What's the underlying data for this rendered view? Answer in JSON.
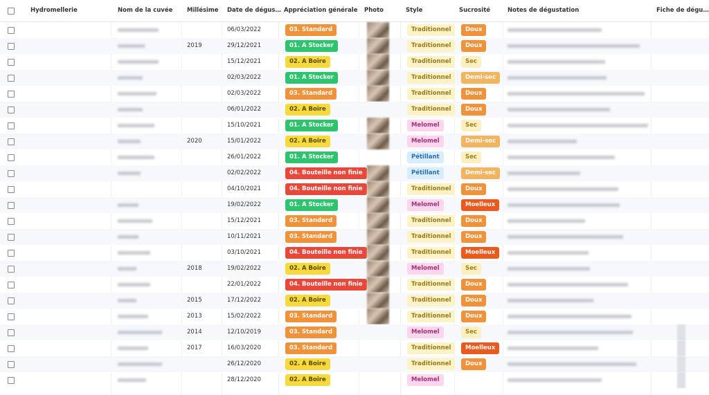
{
  "table": {
    "headers": [
      "Hydromellerie",
      "Nom de la cuvée",
      "Millésime",
      "Date de dégus…",
      "Appréciation générale",
      "Photo",
      "Style",
      "Sucrosité",
      "Notes de dégustation",
      "Fiche de dégu…"
    ],
    "tag_colors": {
      "appreciation": {
        "03. Standard": [
          "#f0923a",
          "#ffffff"
        ],
        "01. A Stocker": [
          "#2ec36d",
          "#ffffff"
        ],
        "02. A Boire": [
          "#f6d93c",
          "#5a4a00"
        ],
        "04. Bouteille non finie": [
          "#e8473a",
          "#ffffff"
        ]
      },
      "style": {
        "Traditionnel": [
          "#fdf3c6",
          "#9a7a1e"
        ],
        "Melomel": [
          "#fbd6ec",
          "#a2317b"
        ],
        "Pétillant": [
          "#d8edfd",
          "#2b6fb0"
        ]
      },
      "sucrosite": {
        "Doux": [
          "#f0923a",
          "#ffffff"
        ],
        "Sec": [
          "#fdf0c0",
          "#a0801f"
        ],
        "Demi-sec": [
          "#f2b45e",
          "#ffffff"
        ],
        "Moelleux": [
          "#eb5a1c",
          "#ffffff"
        ]
      }
    },
    "rows": [
      {
        "millesime": null,
        "date": "06/03/2022",
        "appreciation": "03. Standard",
        "style": "Traditionnel",
        "sucrosite": "Doux",
        "photo": true
      },
      {
        "millesime": "2019",
        "date": "29/12/2021",
        "appreciation": "01. A Stocker",
        "style": "Traditionnel",
        "sucrosite": "Doux",
        "photo": true
      },
      {
        "millesime": null,
        "date": "15/12/2021",
        "appreciation": "02. A Boire",
        "style": "Traditionnel",
        "sucrosite": "Sec",
        "photo": true
      },
      {
        "millesime": null,
        "date": "02/03/2022",
        "appreciation": "01. A Stocker",
        "style": "Traditionnel",
        "sucrosite": "Demi-sec",
        "photo": true
      },
      {
        "millesime": null,
        "date": "02/03/2022",
        "appreciation": "03. Standard",
        "style": "Traditionnel",
        "sucrosite": "Doux",
        "photo": true
      },
      {
        "millesime": null,
        "date": "06/01/2022",
        "appreciation": "02. A Boire",
        "style": "Traditionnel",
        "sucrosite": "Doux",
        "photo": false
      },
      {
        "millesime": null,
        "date": "15/10/2021",
        "appreciation": "01. A Stocker",
        "style": "Melomel",
        "sucrosite": "Sec",
        "photo": true
      },
      {
        "millesime": "2020",
        "date": "15/01/2022",
        "appreciation": "02. A Boire",
        "style": "Melomel",
        "sucrosite": "Demi-sec",
        "photo": true
      },
      {
        "millesime": null,
        "date": "26/01/2022",
        "appreciation": "01. A Stocker",
        "style": "Pétillant",
        "sucrosite": "Sec",
        "photo": false
      },
      {
        "millesime": null,
        "date": "02/02/2022",
        "appreciation": "04. Bouteille non finie",
        "style": "Pétillant",
        "sucrosite": "Demi-sec",
        "photo": true
      },
      {
        "millesime": null,
        "date": "04/10/2021",
        "appreciation": "04. Bouteille non finie",
        "style": "Traditionnel",
        "sucrosite": "Doux",
        "photo": true
      },
      {
        "millesime": null,
        "date": "19/02/2022",
        "appreciation": "01. A Stocker",
        "style": "Melomel",
        "sucrosite": "Moelleux",
        "photo": true
      },
      {
        "millesime": null,
        "date": "15/12/2021",
        "appreciation": "03. Standard",
        "style": "Traditionnel",
        "sucrosite": "Doux",
        "photo": true
      },
      {
        "millesime": null,
        "date": "10/11/2021",
        "appreciation": "03. Standard",
        "style": "Traditionnel",
        "sucrosite": "Doux",
        "photo": true
      },
      {
        "millesime": null,
        "date": "03/10/2021",
        "appreciation": "04. Bouteille non finie",
        "style": "Traditionnel",
        "sucrosite": "Moelleux",
        "photo": true
      },
      {
        "millesime": "2018",
        "date": "19/02/2022",
        "appreciation": "02. A Boire",
        "style": "Melomel",
        "sucrosite": "Sec",
        "photo": true
      },
      {
        "millesime": null,
        "date": "22/01/2022",
        "appreciation": "04. Bouteille non finie",
        "style": "Traditionnel",
        "sucrosite": "Doux",
        "photo": true
      },
      {
        "millesime": "2015",
        "date": "17/12/2022",
        "appreciation": "02. A Boire",
        "style": "Traditionnel",
        "sucrosite": "Doux",
        "photo": true
      },
      {
        "millesime": "2013",
        "date": "15/02/2022",
        "appreciation": "03. Standard",
        "style": "Traditionnel",
        "sucrosite": "Doux",
        "photo": true
      },
      {
        "millesime": "2014",
        "date": "12/10/2019",
        "appreciation": "03. Standard",
        "style": "Melomel",
        "sucrosite": "Sec",
        "photo": false
      },
      {
        "millesime": "2017",
        "date": "16/03/2020",
        "appreciation": "03. Standard",
        "style": "Traditionnel",
        "sucrosite": "Moelleux",
        "photo": false
      },
      {
        "millesime": null,
        "date": "26/12/2020",
        "appreciation": "02. A Boire",
        "style": "Traditionnel",
        "sucrosite": "Doux",
        "photo": false
      },
      {
        "millesime": null,
        "date": "28/12/2020",
        "appreciation": "02. A Boire",
        "style": "Melomel",
        "sucrosite": null,
        "photo": false
      }
    ]
  }
}
